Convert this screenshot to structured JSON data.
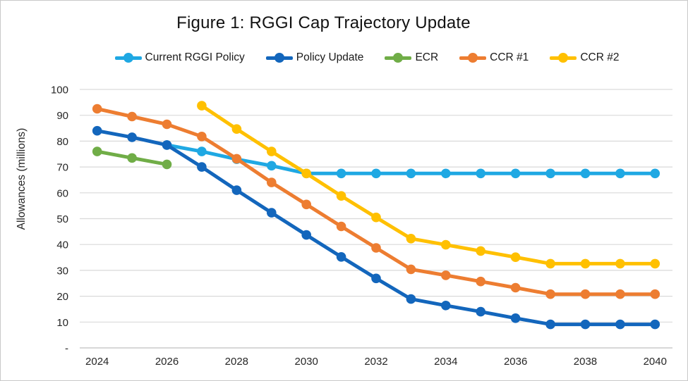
{
  "figure": {
    "title": "Figure 1: RGGI Cap Trajectory Update",
    "y_axis_title": "Allowances (millions)"
  },
  "chart_data": {
    "type": "line",
    "title": "Figure 1: RGGI Cap Trajectory Update",
    "xlabel": "",
    "ylabel": "Allowances (millions)",
    "ylim": [
      0,
      100
    ],
    "grid": "horizontal",
    "legend_position": "top-center",
    "marker": "circle",
    "gridline_color": "#d9d9d9",
    "axis_line_color": "#bfbfbf",
    "years": [
      2024,
      2025,
      2026,
      2027,
      2028,
      2029,
      2030,
      2031,
      2032,
      2033,
      2034,
      2035,
      2036,
      2037,
      2038,
      2039,
      2040
    ],
    "x_tick_labels": [
      "2024",
      "2026",
      "2028",
      "2030",
      "2032",
      "2034",
      "2036",
      "2038",
      "2040"
    ],
    "y_ticks": [
      {
        "value": 100,
        "label": "100"
      },
      {
        "value": 90,
        "label": "90"
      },
      {
        "value": 80,
        "label": "80"
      },
      {
        "value": 70,
        "label": "70"
      },
      {
        "value": 60,
        "label": "60"
      },
      {
        "value": 50,
        "label": "50"
      },
      {
        "value": 40,
        "label": "40"
      },
      {
        "value": 30,
        "label": "30"
      },
      {
        "value": 20,
        "label": "20"
      },
      {
        "value": 10,
        "label": "10"
      },
      {
        "value": 0,
        "label": "-"
      }
    ],
    "series": [
      {
        "name": "Current RGGI Policy",
        "color": "#1fa8e3",
        "values": [
          null,
          null,
          78.5,
          76,
          73,
          70.5,
          67.5,
          67.5,
          67.5,
          67.5,
          67.5,
          67.5,
          67.5,
          67.5,
          67.5,
          67.5,
          67.5
        ]
      },
      {
        "name": "Policy Update",
        "color": "#1366bc",
        "values": [
          84,
          81.5,
          78.5,
          70,
          61,
          52.3,
          43.7,
          35.2,
          26.9,
          18.9,
          16.4,
          14,
          11.5,
          9.1,
          9.1,
          9.1,
          9.1
        ]
      },
      {
        "name": "ECR",
        "color": "#70ad47",
        "values": [
          76,
          73.5,
          71,
          null,
          null,
          null,
          null,
          null,
          null,
          null,
          null,
          null,
          null,
          null,
          null,
          null,
          null
        ]
      },
      {
        "name": "CCR #1",
        "color": "#ed7d31",
        "values": [
          92.5,
          89.5,
          86.5,
          81.8,
          73.2,
          64,
          55.5,
          47,
          38.7,
          30.4,
          28.1,
          25.7,
          23.3,
          20.8,
          20.8,
          20.8,
          20.8
        ]
      },
      {
        "name": "CCR #2",
        "color": "#ffc000",
        "values": [
          null,
          null,
          null,
          93.7,
          84.7,
          76,
          67.5,
          58.8,
          50.5,
          42.3,
          39.9,
          37.5,
          35.1,
          32.6,
          32.6,
          32.6,
          32.6
        ]
      }
    ]
  }
}
